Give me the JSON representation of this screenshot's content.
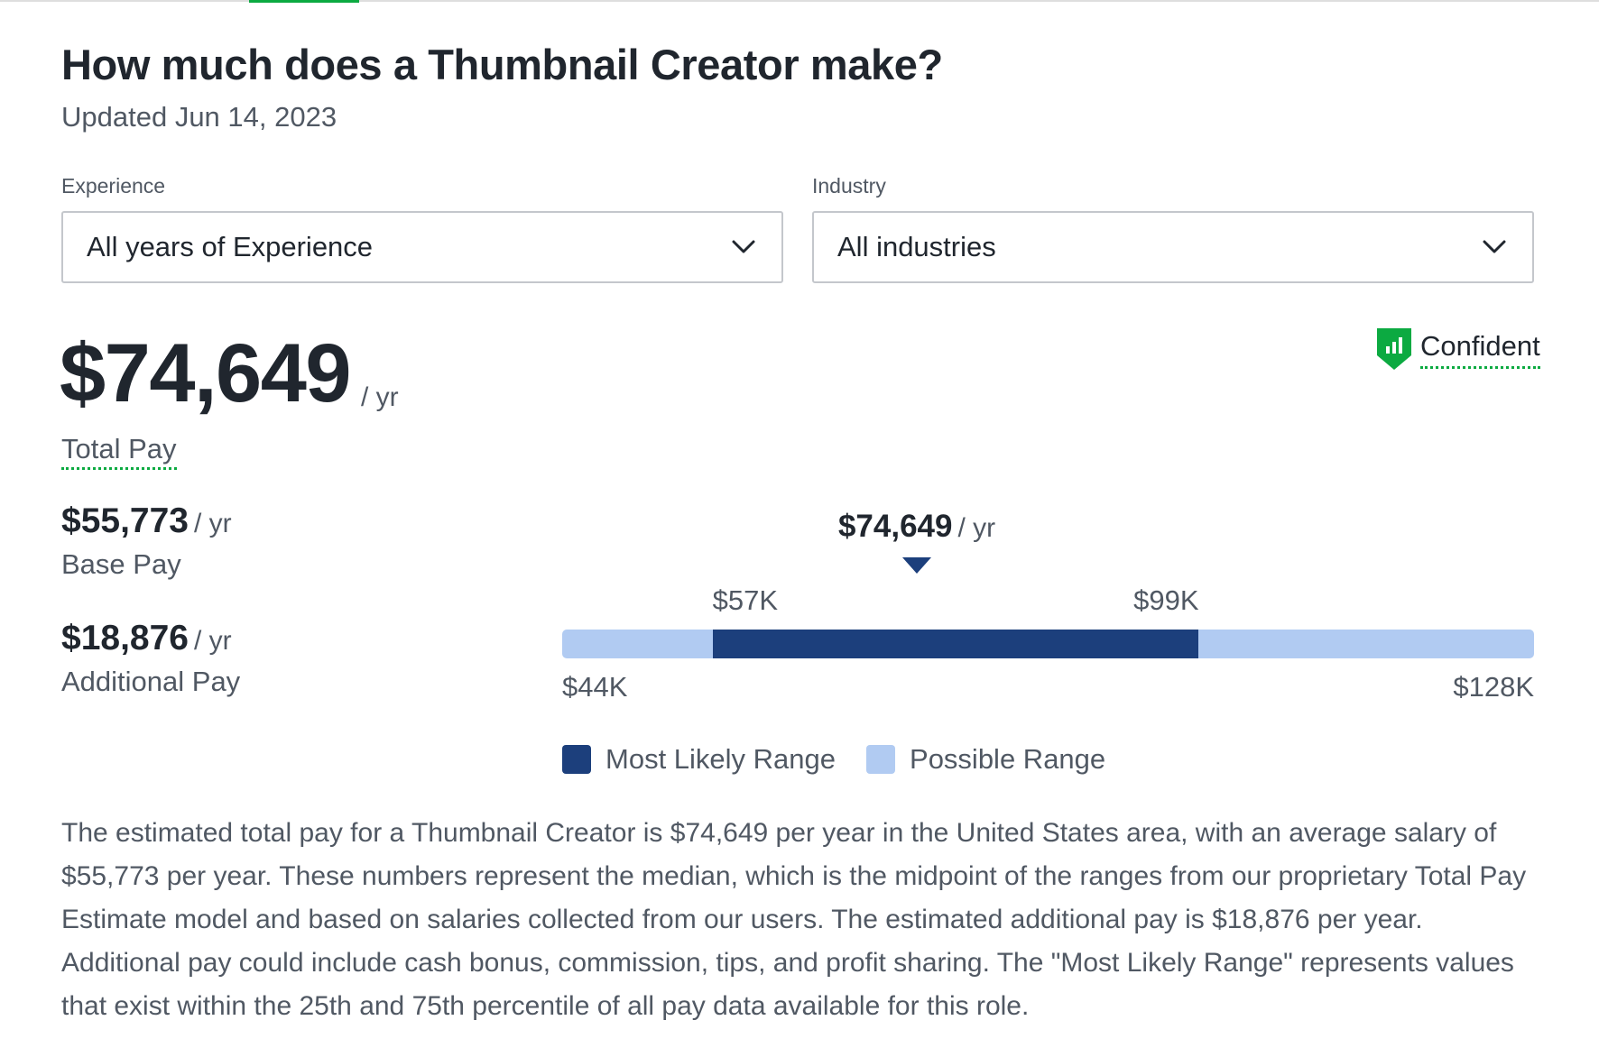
{
  "header": {
    "title": "How much does a Thumbnail Creator make?",
    "updated": "Updated Jun 14, 2023"
  },
  "filters": {
    "experience": {
      "label": "Experience",
      "value": "All years of Experience"
    },
    "industry": {
      "label": "Industry",
      "value": "All industries"
    }
  },
  "total_pay": {
    "amount": "$74,649",
    "unit": "/ yr",
    "label": "Total Pay"
  },
  "confidence": {
    "label": "Confident",
    "icon": "shield-chart-icon",
    "color": "#0caa41"
  },
  "base_pay": {
    "amount": "$55,773",
    "unit": "/ yr",
    "label": "Base Pay"
  },
  "additional_pay": {
    "amount": "$18,876",
    "unit": "/ yr",
    "label": "Additional Pay"
  },
  "range": {
    "median": {
      "amount": "$74,649",
      "unit": "/ yr",
      "value": 74649
    },
    "min": {
      "label": "$44K",
      "value": 44000
    },
    "p25": {
      "label": "$57K",
      "value": 57000
    },
    "p75": {
      "label": "$99K",
      "value": 99000
    },
    "max": {
      "label": "$128K",
      "value": 128000
    },
    "colors": {
      "most_likely": "#1c3f7c",
      "possible": "#b1cbf2"
    }
  },
  "legend": {
    "most_likely": "Most Likely Range",
    "possible": "Possible Range"
  },
  "description": "The estimated total pay for a Thumbnail Creator is $74,649 per year in the United States area, with an average salary of $55,773 per year. These numbers represent the median, which is the midpoint of the ranges from our proprietary Total Pay Estimate model and based on salaries collected from our users. The estimated additional pay is $18,876 per year. Additional pay could include cash bonus, commission, tips, and profit sharing. The \"Most Likely Range\" represents values that exist within the 25th and 75th percentile of all pay data available for this role."
}
